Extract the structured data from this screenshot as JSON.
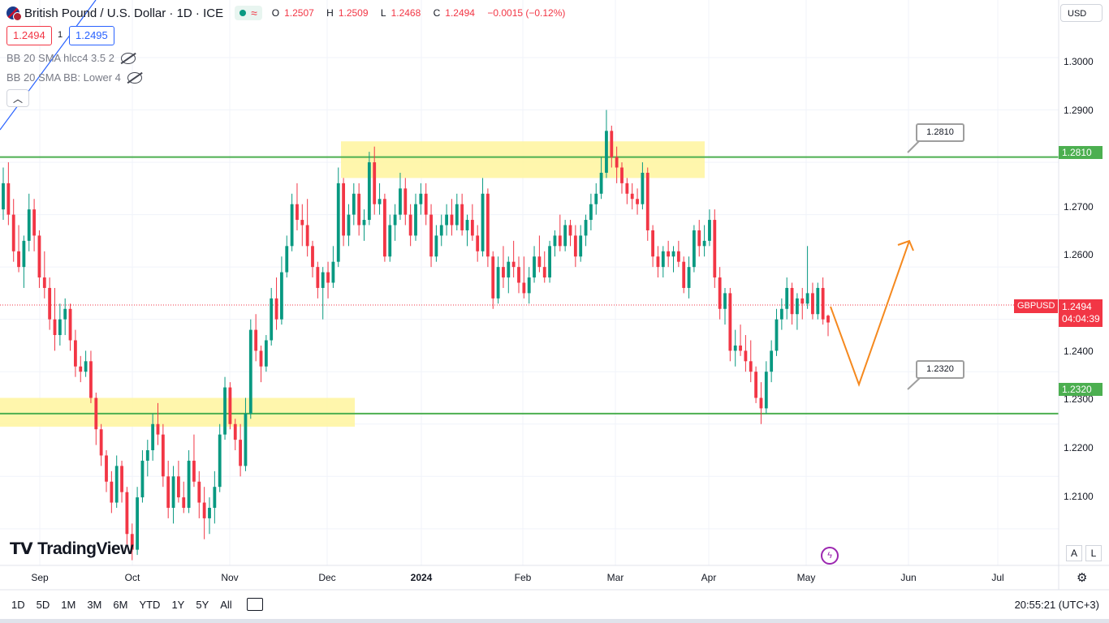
{
  "header": {
    "symbol": "British Pound / U.S. Dollar · 1D · ICE",
    "status_icon": "green-dot-icon",
    "wave_icon": "wave-icon",
    "ohlc": {
      "o_label": "O",
      "o": "1.2507",
      "h_label": "H",
      "h": "1.2509",
      "l_label": "L",
      "l": "1.2468",
      "c_label": "C",
      "c": "1.2494",
      "change": "−0.0015 (−0.12%)"
    }
  },
  "trade": {
    "bid": "1.2494",
    "spread": "1",
    "ask": "1.2495"
  },
  "indicators": [
    {
      "label": "BB 20 SMA hlcc4 3.5 2"
    },
    {
      "label": "BB 20 SMA BB: Lower 4"
    }
  ],
  "currency": "USD",
  "price_axis": {
    "ticks": [
      "1.3000",
      "1.2900",
      "1.2700",
      "1.2600",
      "1.2400",
      "1.2300",
      "1.2200",
      "1.2100"
    ]
  },
  "levels": {
    "resistance": "1.2810",
    "support": "1.2320"
  },
  "last_price": {
    "symbol": "GBPUSD",
    "price": "1.2494",
    "countdown": "04:04:39"
  },
  "time_axis": {
    "labels": [
      "Sep",
      "Oct",
      "Nov",
      "Dec",
      "2024",
      "Feb",
      "Mar",
      "Apr",
      "May",
      "Jun",
      "Jul"
    ]
  },
  "brand": "TradingView",
  "bottom_bar": {
    "ranges": [
      "1D",
      "5D",
      "1M",
      "3M",
      "6M",
      "YTD",
      "1Y",
      "5Y",
      "All"
    ],
    "clock": "20:55:21 (UTC+3)"
  },
  "scale_buttons": {
    "a": "A",
    "l": "L"
  },
  "chart_data": {
    "type": "candlestick",
    "title": "British Pound / U.S. Dollar · 1D · ICE",
    "interval": "1D",
    "ylim": [
      1.203,
      1.311
    ],
    "y_ticks": [
      1.21,
      1.22,
      1.23,
      1.24,
      1.26,
      1.27,
      1.29,
      1.3
    ],
    "x_labels": [
      "Sep",
      "Oct",
      "Nov",
      "Dec",
      "2024",
      "Feb",
      "Mar",
      "Apr",
      "May",
      "Jun",
      "Jul"
    ],
    "colors": {
      "up": "#089981",
      "down": "#f23645",
      "level": "#4caf50",
      "zone": "#fff59d",
      "projection": "#f5891f"
    },
    "horizontal_levels": [
      1.281,
      1.232
    ],
    "zones": [
      [
        1.277,
        1.284
      ],
      [
        1.2295,
        1.235
      ]
    ],
    "projection_path": [
      [
        1.248,
        "2024-05-09"
      ],
      [
        1.2325,
        "2024-05-17"
      ],
      [
        1.263,
        "2024-06-01"
      ]
    ],
    "candles": [
      [
        1.271,
        1.279,
        1.269,
        1.276
      ],
      [
        1.276,
        1.28,
        1.268,
        1.27
      ],
      [
        1.27,
        1.273,
        1.261,
        1.263
      ],
      [
        1.263,
        1.268,
        1.259,
        1.26
      ],
      [
        1.26,
        1.266,
        1.256,
        1.265
      ],
      [
        1.265,
        1.274,
        1.263,
        1.271
      ],
      [
        1.271,
        1.273,
        1.263,
        1.266
      ],
      [
        1.266,
        1.267,
        1.256,
        1.258
      ],
      [
        1.258,
        1.263,
        1.254,
        1.256
      ],
      [
        1.256,
        1.258,
        1.248,
        1.25
      ],
      [
        1.25,
        1.256,
        1.244,
        1.247
      ],
      [
        1.247,
        1.253,
        1.245,
        1.25
      ],
      [
        1.25,
        1.254,
        1.247,
        1.252
      ],
      [
        1.252,
        1.253,
        1.244,
        1.246
      ],
      [
        1.246,
        1.248,
        1.239,
        1.241
      ],
      [
        1.241,
        1.243,
        1.238,
        1.24
      ],
      [
        1.24,
        1.244,
        1.239,
        1.242
      ],
      [
        1.242,
        1.244,
        1.234,
        1.235
      ],
      [
        1.235,
        1.236,
        1.226,
        1.229
      ],
      [
        1.229,
        1.23,
        1.222,
        1.224
      ],
      [
        1.224,
        1.225,
        1.217,
        1.219
      ],
      [
        1.219,
        1.221,
        1.213,
        1.215
      ],
      [
        1.215,
        1.224,
        1.214,
        1.222
      ],
      [
        1.222,
        1.223,
        1.215,
        1.217
      ],
      [
        1.217,
        1.218,
        1.207,
        1.209
      ],
      [
        1.209,
        1.211,
        1.204,
        1.206
      ],
      [
        1.206,
        1.218,
        1.205,
        1.216
      ],
      [
        1.216,
        1.225,
        1.215,
        1.223
      ],
      [
        1.223,
        1.227,
        1.22,
        1.225
      ],
      [
        1.225,
        1.232,
        1.223,
        1.23
      ],
      [
        1.23,
        1.234,
        1.226,
        1.228
      ],
      [
        1.228,
        1.23,
        1.218,
        1.22
      ],
      [
        1.22,
        1.223,
        1.212,
        1.214
      ],
      [
        1.214,
        1.222,
        1.211,
        1.22
      ],
      [
        1.22,
        1.223,
        1.215,
        1.216
      ],
      [
        1.216,
        1.219,
        1.213,
        1.214
      ],
      [
        1.214,
        1.225,
        1.213,
        1.223
      ],
      [
        1.223,
        1.228,
        1.218,
        1.219
      ],
      [
        1.219,
        1.221,
        1.212,
        1.215
      ],
      [
        1.215,
        1.218,
        1.208,
        1.212
      ],
      [
        1.212,
        1.216,
        1.209,
        1.214
      ],
      [
        1.214,
        1.221,
        1.211,
        1.218
      ],
      [
        1.218,
        1.23,
        1.217,
        1.228
      ],
      [
        1.228,
        1.239,
        1.227,
        1.237
      ],
      [
        1.237,
        1.238,
        1.229,
        1.23
      ],
      [
        1.23,
        1.231,
        1.225,
        1.227
      ],
      [
        1.227,
        1.23,
        1.22,
        1.222
      ],
      [
        1.222,
        1.235,
        1.221,
        1.232
      ],
      [
        1.232,
        1.25,
        1.231,
        1.248
      ],
      [
        1.248,
        1.251,
        1.242,
        1.244
      ],
      [
        1.244,
        1.245,
        1.238,
        1.241
      ],
      [
        1.241,
        1.247,
        1.24,
        1.246
      ],
      [
        1.246,
        1.256,
        1.245,
        1.254
      ],
      [
        1.254,
        1.258,
        1.248,
        1.25
      ],
      [
        1.25,
        1.262,
        1.249,
        1.259
      ],
      [
        1.259,
        1.266,
        1.258,
        1.264
      ],
      [
        1.264,
        1.274,
        1.263,
        1.272
      ],
      [
        1.272,
        1.276,
        1.267,
        1.269
      ],
      [
        1.269,
        1.272,
        1.264,
        1.268
      ],
      [
        1.268,
        1.273,
        1.262,
        1.264
      ],
      [
        1.264,
        1.265,
        1.258,
        1.26
      ],
      [
        1.26,
        1.261,
        1.254,
        1.256
      ],
      [
        1.256,
        1.26,
        1.25,
        1.259
      ],
      [
        1.259,
        1.261,
        1.254,
        1.257
      ],
      [
        1.257,
        1.264,
        1.256,
        1.261
      ],
      [
        1.261,
        1.279,
        1.26,
        1.276
      ],
      [
        1.276,
        1.277,
        1.264,
        1.266
      ],
      [
        1.266,
        1.272,
        1.264,
        1.27
      ],
      [
        1.27,
        1.276,
        1.268,
        1.274
      ],
      [
        1.274,
        1.276,
        1.266,
        1.268
      ],
      [
        1.268,
        1.271,
        1.265,
        1.269
      ],
      [
        1.269,
        1.282,
        1.268,
        1.28
      ],
      [
        1.28,
        1.283,
        1.27,
        1.272
      ],
      [
        1.272,
        1.276,
        1.27,
        1.273
      ],
      [
        1.273,
        1.274,
        1.261,
        1.262
      ],
      [
        1.262,
        1.27,
        1.261,
        1.268
      ],
      [
        1.268,
        1.272,
        1.265,
        1.27
      ],
      [
        1.27,
        1.278,
        1.269,
        1.275
      ],
      [
        1.275,
        1.277,
        1.268,
        1.27
      ],
      [
        1.27,
        1.272,
        1.264,
        1.266
      ],
      [
        1.266,
        1.274,
        1.265,
        1.272
      ],
      [
        1.272,
        1.276,
        1.27,
        1.274
      ],
      [
        1.274,
        1.276,
        1.268,
        1.27
      ],
      [
        1.27,
        1.272,
        1.26,
        1.262
      ],
      [
        1.262,
        1.268,
        1.261,
        1.266
      ],
      [
        1.266,
        1.27,
        1.264,
        1.268
      ],
      [
        1.268,
        1.272,
        1.266,
        1.27
      ],
      [
        1.27,
        1.273,
        1.266,
        1.268
      ],
      [
        1.268,
        1.274,
        1.267,
        1.272
      ],
      [
        1.272,
        1.274,
        1.266,
        1.267
      ],
      [
        1.267,
        1.27,
        1.264,
        1.269
      ],
      [
        1.269,
        1.272,
        1.265,
        1.266
      ],
      [
        1.266,
        1.268,
        1.261,
        1.263
      ],
      [
        1.263,
        1.277,
        1.262,
        1.274
      ],
      [
        1.274,
        1.275,
        1.26,
        1.262
      ],
      [
        1.262,
        1.263,
        1.252,
        1.254
      ],
      [
        1.254,
        1.262,
        1.253,
        1.26
      ],
      [
        1.26,
        1.264,
        1.256,
        1.258
      ],
      [
        1.258,
        1.262,
        1.255,
        1.261
      ],
      [
        1.261,
        1.265,
        1.258,
        1.26
      ],
      [
        1.26,
        1.262,
        1.255,
        1.257
      ],
      [
        1.257,
        1.262,
        1.254,
        1.255
      ],
      [
        1.255,
        1.26,
        1.253,
        1.258
      ],
      [
        1.258,
        1.264,
        1.257,
        1.262
      ],
      [
        1.262,
        1.266,
        1.259,
        1.26
      ],
      [
        1.26,
        1.263,
        1.257,
        1.258
      ],
      [
        1.258,
        1.265,
        1.257,
        1.264
      ],
      [
        1.264,
        1.267,
        1.262,
        1.266
      ],
      [
        1.266,
        1.27,
        1.263,
        1.264
      ],
      [
        1.264,
        1.269,
        1.263,
        1.268
      ],
      [
        1.268,
        1.269,
        1.264,
        1.266
      ],
      [
        1.266,
        1.268,
        1.26,
        1.262
      ],
      [
        1.262,
        1.268,
        1.261,
        1.266
      ],
      [
        1.266,
        1.27,
        1.264,
        1.269
      ],
      [
        1.269,
        1.274,
        1.267,
        1.272
      ],
      [
        1.272,
        1.276,
        1.27,
        1.274
      ],
      [
        1.274,
        1.281,
        1.273,
        1.278
      ],
      [
        1.278,
        1.29,
        1.277,
        1.286
      ],
      [
        1.286,
        1.287,
        1.279,
        1.281
      ],
      [
        1.281,
        1.283,
        1.276,
        1.279
      ],
      [
        1.279,
        1.28,
        1.274,
        1.276
      ],
      [
        1.276,
        1.277,
        1.272,
        1.274
      ],
      [
        1.274,
        1.276,
        1.271,
        1.273
      ],
      [
        1.273,
        1.275,
        1.27,
        1.272
      ],
      [
        1.272,
        1.28,
        1.271,
        1.278
      ],
      [
        1.278,
        1.279,
        1.265,
        1.267
      ],
      [
        1.267,
        1.268,
        1.26,
        1.262
      ],
      [
        1.262,
        1.264,
        1.258,
        1.26
      ],
      [
        1.26,
        1.264,
        1.258,
        1.263
      ],
      [
        1.263,
        1.265,
        1.26,
        1.262
      ],
      [
        1.262,
        1.264,
        1.259,
        1.263
      ],
      [
        1.263,
        1.265,
        1.26,
        1.261
      ],
      [
        1.261,
        1.262,
        1.255,
        1.256
      ],
      [
        1.256,
        1.262,
        1.254,
        1.26
      ],
      [
        1.26,
        1.268,
        1.259,
        1.267
      ],
      [
        1.267,
        1.269,
        1.262,
        1.264
      ],
      [
        1.264,
        1.268,
        1.262,
        1.265
      ],
      [
        1.265,
        1.271,
        1.264,
        1.269
      ],
      [
        1.269,
        1.271,
        1.256,
        1.258
      ],
      [
        1.258,
        1.26,
        1.25,
        1.252
      ],
      [
        1.252,
        1.256,
        1.249,
        1.255
      ],
      [
        1.255,
        1.256,
        1.242,
        1.244
      ],
      [
        1.244,
        1.248,
        1.241,
        1.245
      ],
      [
        1.245,
        1.249,
        1.243,
        1.244
      ],
      [
        1.244,
        1.247,
        1.24,
        1.242
      ],
      [
        1.242,
        1.246,
        1.238,
        1.24
      ],
      [
        1.24,
        1.241,
        1.234,
        1.235
      ],
      [
        1.235,
        1.238,
        1.23,
        1.233
      ],
      [
        1.233,
        1.242,
        1.232,
        1.24
      ],
      [
        1.24,
        1.246,
        1.238,
        1.244
      ],
      [
        1.244,
        1.252,
        1.243,
        1.25
      ],
      [
        1.25,
        1.254,
        1.248,
        1.252
      ],
      [
        1.252,
        1.258,
        1.25,
        1.256
      ],
      [
        1.256,
        1.257,
        1.249,
        1.251
      ],
      [
        1.251,
        1.255,
        1.248,
        1.254
      ],
      [
        1.254,
        1.256,
        1.25,
        1.253
      ],
      [
        1.253,
        1.264,
        1.252,
        1.255
      ],
      [
        1.255,
        1.257,
        1.25,
        1.251
      ],
      [
        1.251,
        1.257,
        1.25,
        1.256
      ],
      [
        1.256,
        1.258,
        1.249,
        1.25
      ],
      [
        1.2507,
        1.2509,
        1.2468,
        1.2494
      ]
    ]
  }
}
